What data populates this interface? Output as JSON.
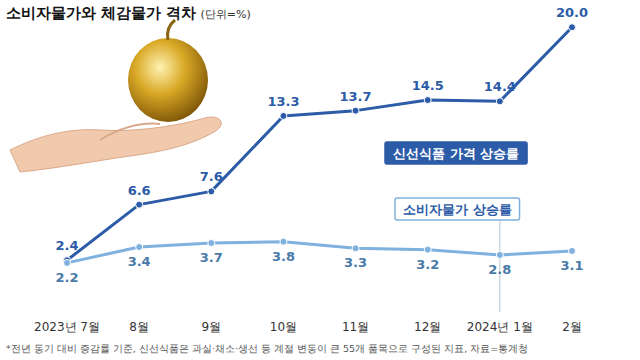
{
  "chart_data": {
    "type": "line",
    "title": "소비자물가와 체감물가 격차",
    "subtitle": "(단위=%)",
    "footnote": "*전년 동기 대비 증감률 기준, 신선식품은 과실·채소·생선 등 계절 변동이 큰 55개 품목으로 구성된 지표, 자료=통계청",
    "categories": [
      "2023년 7월",
      "8월",
      "9월",
      "10월",
      "11월",
      "12월",
      "2024년 1월",
      "2월"
    ],
    "ylim": [
      0,
      21
    ],
    "tick_labels": "x",
    "data_labels": true,
    "marker": "circle",
    "series": [
      {
        "name": "신선식품 가격 상승률",
        "color": "#2c5ba7",
        "values": [
          2.4,
          6.6,
          7.6,
          13.3,
          13.7,
          14.5,
          14.4,
          20.0
        ],
        "value_labels": [
          "2.4",
          "6.6",
          "7.6",
          "13.3",
          "13.7",
          "14.5",
          "14.4",
          "20.0"
        ]
      },
      {
        "name": "소비자물가 상승률",
        "color": "#7fb1de",
        "values": [
          2.2,
          3.4,
          3.7,
          3.8,
          3.3,
          3.2,
          2.8,
          3.1
        ]
      }
    ]
  }
}
